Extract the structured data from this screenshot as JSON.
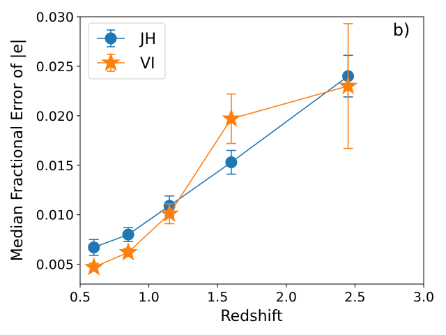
{
  "chart_data": {
    "type": "line",
    "title": "",
    "panel_label": "b)",
    "xlabel": "Redshift",
    "ylabel": "Median Fractional Error of |e|",
    "xlim": [
      0.5,
      3.0
    ],
    "ylim": [
      0.003,
      0.03
    ],
    "x_ticks": [
      0.5,
      1.0,
      1.5,
      2.0,
      2.5,
      3.0
    ],
    "x_tick_labels": [
      "0.5",
      "1.0",
      "1.5",
      "2.0",
      "2.5",
      "3.0"
    ],
    "y_ticks": [
      0.005,
      0.01,
      0.015,
      0.02,
      0.025,
      0.03
    ],
    "y_tick_labels": [
      "0.005",
      "0.010",
      "0.015",
      "0.020",
      "0.025",
      "0.030"
    ],
    "grid": false,
    "legend_position": "top-left",
    "series": [
      {
        "name": "JH",
        "marker": "circle",
        "color": "#1f77b4",
        "x": [
          0.6,
          0.85,
          1.15,
          1.6,
          2.45
        ],
        "y": [
          0.0067,
          0.008,
          0.0109,
          0.0153,
          0.024
        ],
        "yerr": [
          0.0008,
          0.0007,
          0.001,
          0.0012,
          0.0021
        ]
      },
      {
        "name": "VI",
        "marker": "star",
        "color": "#ff7f0e",
        "x": [
          0.6,
          0.85,
          1.15,
          1.6,
          2.45
        ],
        "y": [
          0.0047,
          0.0062,
          0.0101,
          0.0197,
          0.023
        ],
        "yerr": [
          0.0004,
          0.0004,
          0.001,
          0.0025,
          0.0063
        ]
      }
    ]
  }
}
